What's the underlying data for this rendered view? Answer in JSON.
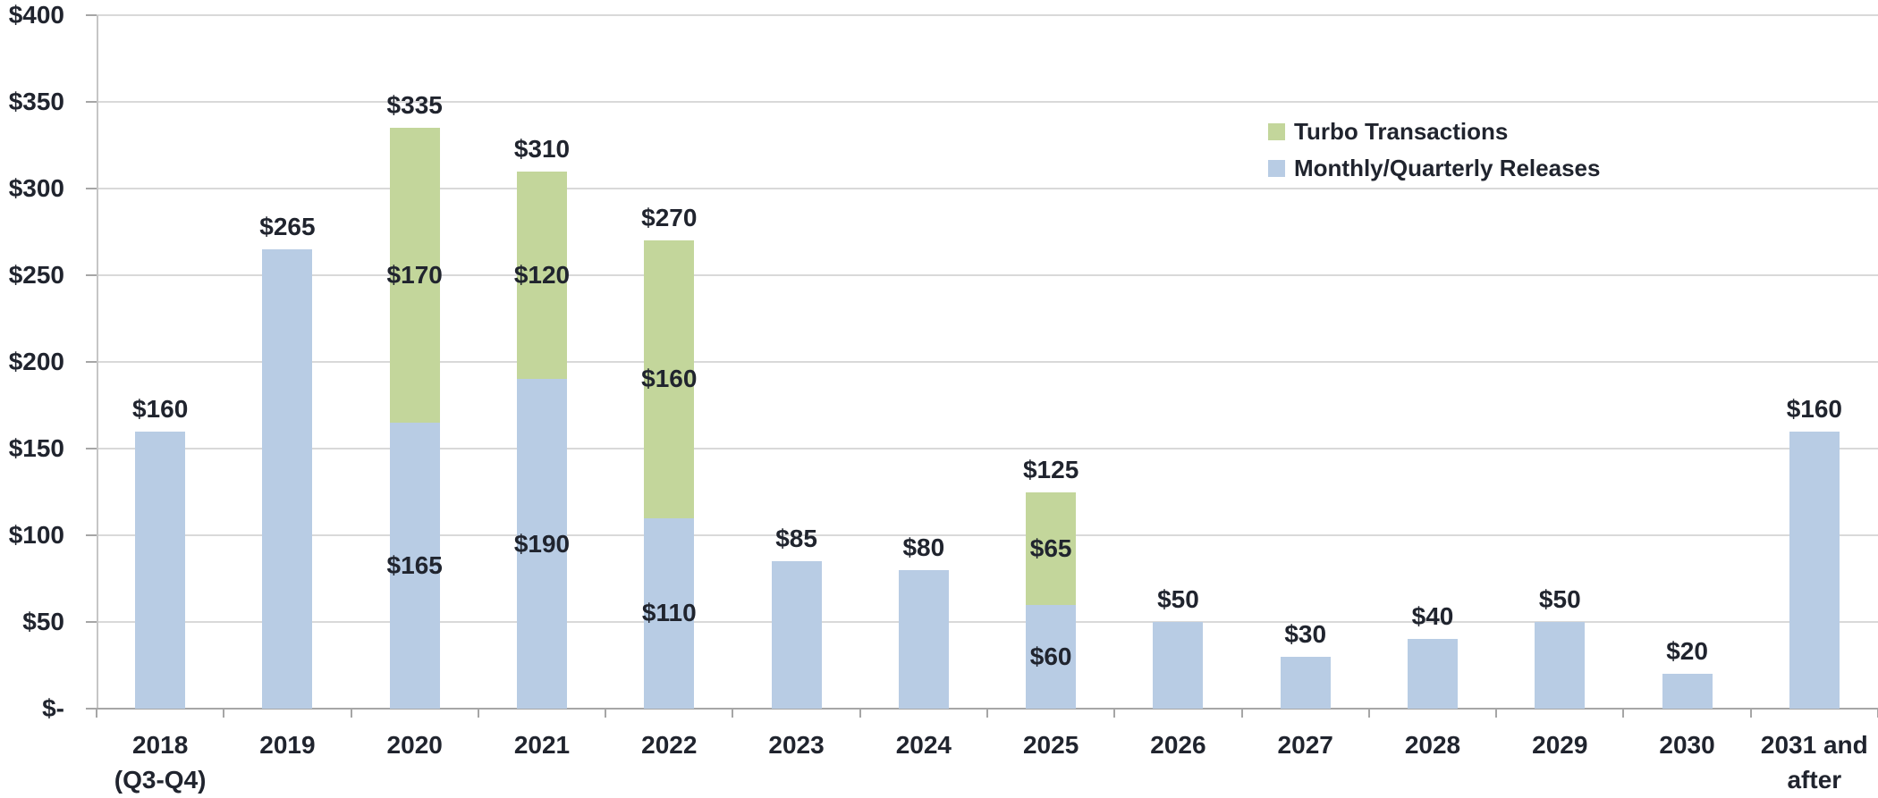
{
  "chart_data": {
    "type": "bar",
    "stacked": true,
    "title": "",
    "xlabel": "",
    "ylabel": "",
    "grid": true,
    "value_prefix": "$",
    "categories": [
      [
        "2018",
        "(Q3-Q4)"
      ],
      [
        "2019"
      ],
      [
        "2020"
      ],
      [
        "2021"
      ],
      [
        "2022"
      ],
      [
        "2023"
      ],
      [
        "2024"
      ],
      [
        "2025"
      ],
      [
        "2026"
      ],
      [
        "2027"
      ],
      [
        "2028"
      ],
      [
        "2029"
      ],
      [
        "2030"
      ],
      [
        "2031 and",
        "after"
      ]
    ],
    "series": [
      {
        "name": "Turbo Transactions",
        "color": "#c3d69b",
        "values": [
          0,
          0,
          170,
          120,
          160,
          0,
          0,
          65,
          0,
          0,
          0,
          0,
          0,
          0
        ]
      },
      {
        "name": "Monthly/Quarterly Releases",
        "color": "#b8cce4",
        "values": [
          160,
          265,
          165,
          190,
          110,
          85,
          80,
          60,
          50,
          30,
          40,
          50,
          20,
          160
        ]
      }
    ],
    "totals": [
      160,
      265,
      335,
      310,
      270,
      85,
      80,
      125,
      50,
      30,
      40,
      50,
      20,
      160
    ],
    "segment_labels": {
      "turbo": [
        "",
        "",
        "$170",
        "$120",
        "$160",
        "",
        "",
        "$65",
        "",
        "",
        "",
        "",
        "",
        ""
      ],
      "monthly": [
        "",
        "",
        "$165",
        "$190",
        "$110",
        "",
        "",
        "$60",
        "",
        "",
        "",
        "",
        "",
        ""
      ]
    },
    "total_labels": [
      "$160",
      "$265",
      "$335",
      "$310",
      "$270",
      "$85",
      "$80",
      "$125",
      "$50",
      "$30",
      "$40",
      "$50",
      "$20",
      "$160"
    ],
    "y_axis": {
      "min": 0,
      "max": 400,
      "step": 50,
      "tick_labels": [
        "$-",
        "$50",
        "$100",
        "$150",
        "$200",
        "$250",
        "$300",
        "$350",
        "$400"
      ]
    },
    "legend": {
      "position": "top-right",
      "items": [
        {
          "label": "Turbo Transactions",
          "color": "#c3d69b"
        },
        {
          "label": "Monthly/Quarterly Releases",
          "color": "#b8cce4"
        }
      ]
    }
  },
  "colors": {
    "grid": "#d9d9d9",
    "axis": "#a6a6a6",
    "text": "#20242e",
    "background": "#ffffff"
  }
}
